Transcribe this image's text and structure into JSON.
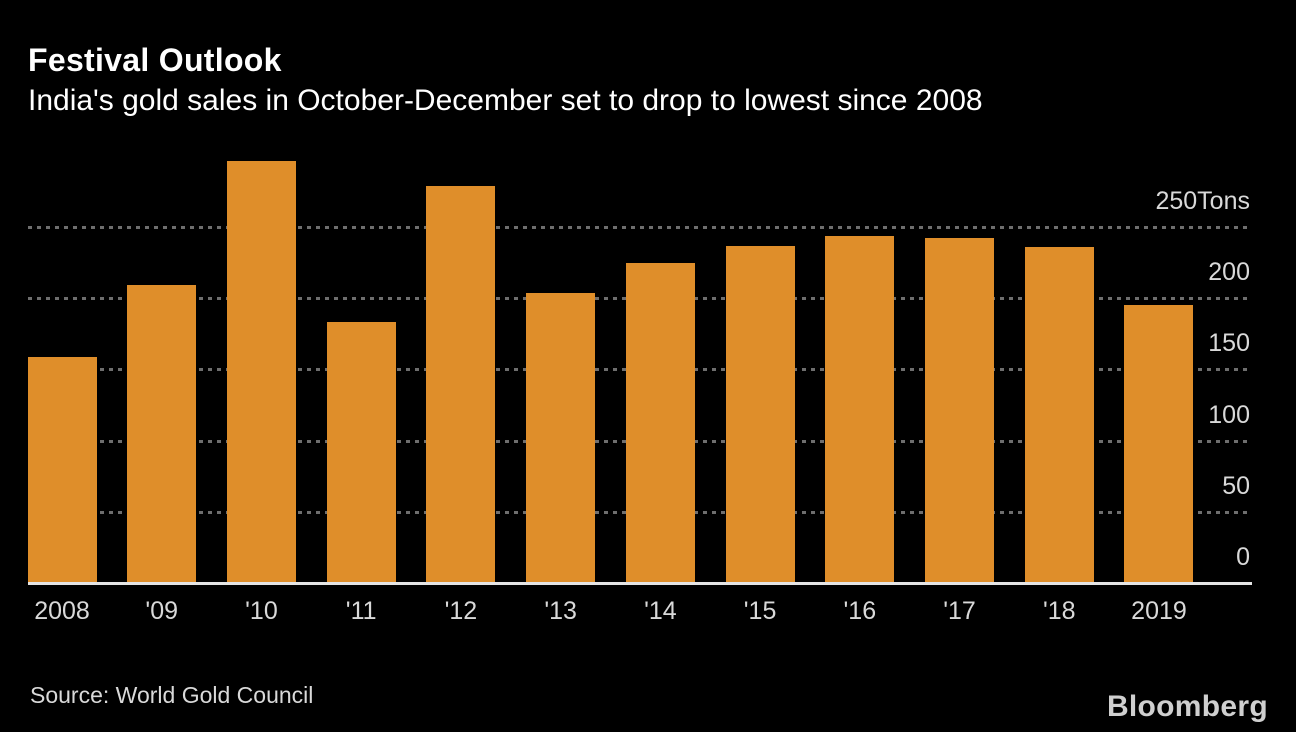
{
  "header": {
    "title": "Festival Outlook",
    "subtitle": "India's gold sales in October-December set to drop to lowest since 2008"
  },
  "chart_data": {
    "type": "bar",
    "title": "Festival Outlook",
    "subtitle": "India's gold sales in October-December set to drop to lowest since 2008",
    "categories": [
      "2008",
      "'09",
      "'10",
      "'11",
      "'12",
      "'13",
      "'14",
      "'15",
      "'16",
      "'17",
      "'18",
      "2019"
    ],
    "values": [
      159,
      209,
      296,
      183,
      279,
      204,
      225,
      237,
      244,
      242,
      236,
      195
    ],
    "unit": "Tons",
    "xlabel": "",
    "ylabel": "Tons",
    "yticks": [
      0,
      50,
      100,
      150,
      200,
      250
    ],
    "ytick_labels": [
      "0",
      "50",
      "100",
      "150",
      "200",
      "250Tons"
    ],
    "ylim": [
      0,
      300
    ],
    "grid": "horizontal-dashed",
    "legend": "none"
  },
  "footer": {
    "source": "Source: World Gold Council",
    "logo": "Bloomberg"
  },
  "colors": {
    "background": "#000000",
    "bar": "#df8e2a",
    "title_text": "#ffffff",
    "axis_text": "#d9d9d9",
    "gridline": "#6e6e6e",
    "baseline": "#e5e5e5",
    "source_text": "#d9d9d9",
    "logo_text": "#cfcfcf"
  }
}
